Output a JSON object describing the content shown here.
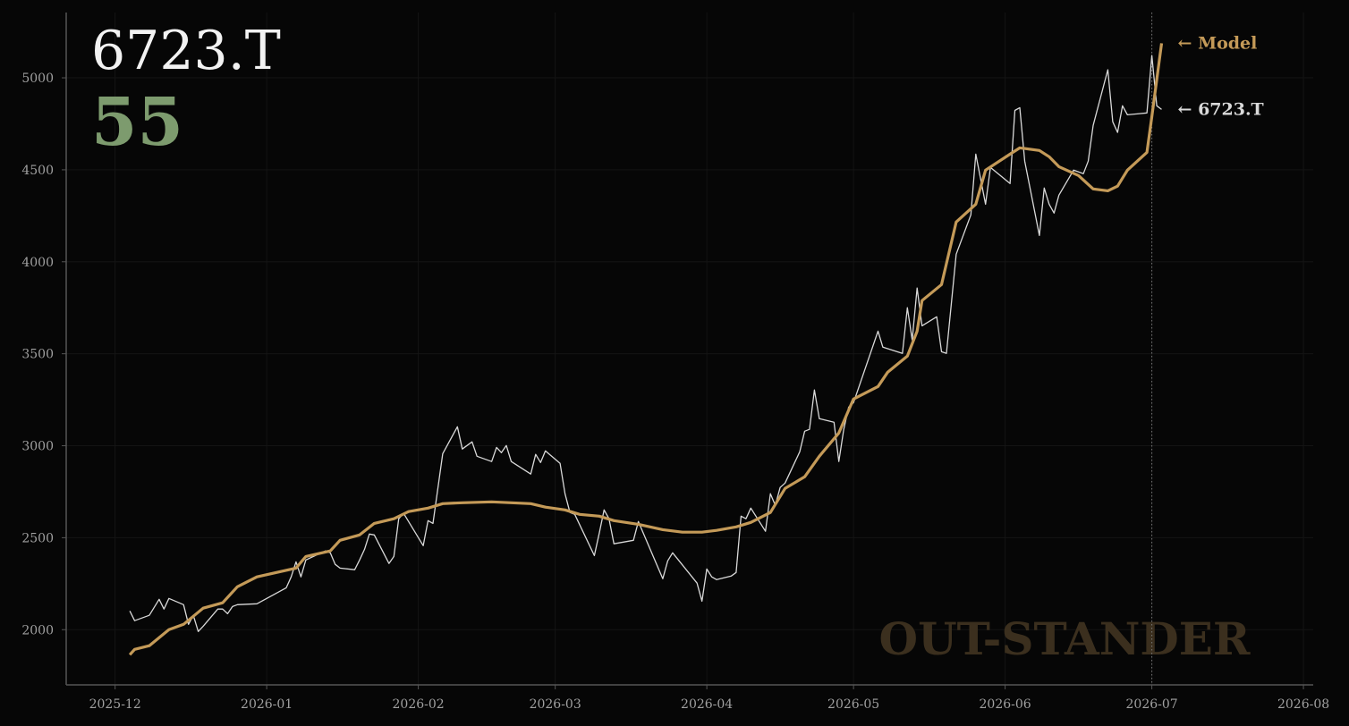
{
  "chart_data": {
    "type": "line",
    "title": "6723.T",
    "score": 55,
    "watermark": "OUT-STANDER",
    "xlim": [
      "2025-11-21",
      "2026-08-03"
    ],
    "xticks": [
      {
        "value": "2025-12-01",
        "label": "2025-12"
      },
      {
        "value": "2026-01-01",
        "label": "2026-01"
      },
      {
        "value": "2026-02-01",
        "label": "2026-02"
      },
      {
        "value": "2026-03-01",
        "label": "2026-03"
      },
      {
        "value": "2026-04-01",
        "label": "2026-04"
      },
      {
        "value": "2026-05-01",
        "label": "2026-05"
      },
      {
        "value": "2026-06-01",
        "label": "2026-06"
      },
      {
        "value": "2026-07-01",
        "label": "2026-07"
      },
      {
        "value": "2026-08-01",
        "label": "2026-08"
      }
    ],
    "ylim": [
      1700,
      5355
    ],
    "yticks": [
      2000,
      2500,
      3000,
      3500,
      4000,
      4500,
      5000
    ],
    "grid": true,
    "marker_date": "2026-07-01",
    "series": [
      {
        "label": "← 6723.T",
        "color": "#d9d9d9",
        "x": [
          "2025-12-04",
          "2025-12-05",
          "2025-12-08",
          "2025-12-10",
          "2025-12-11",
          "2025-12-12",
          "2025-12-15",
          "2025-12-16",
          "2025-12-17",
          "2025-12-18",
          "2025-12-19",
          "2025-12-22",
          "2025-12-23",
          "2025-12-24",
          "2025-12-25",
          "2025-12-26",
          "2025-12-30",
          "2026-01-05",
          "2026-01-06",
          "2026-01-07",
          "2026-01-08",
          "2026-01-09",
          "2026-01-13",
          "2026-01-14",
          "2026-01-15",
          "2026-01-16",
          "2026-01-19",
          "2026-01-20",
          "2026-01-21",
          "2026-01-22",
          "2026-01-23",
          "2026-01-26",
          "2026-01-27",
          "2026-01-28",
          "2026-01-29",
          "2026-02-02",
          "2026-02-03",
          "2026-02-04",
          "2026-02-06",
          "2026-02-09",
          "2026-02-10",
          "2026-02-12",
          "2026-02-13",
          "2026-02-16",
          "2026-02-17",
          "2026-02-18",
          "2026-02-19",
          "2026-02-20",
          "2026-02-24",
          "2026-02-25",
          "2026-02-26",
          "2026-02-27",
          "2026-03-02",
          "2026-03-03",
          "2026-03-04",
          "2026-03-05",
          "2026-03-09",
          "2026-03-10",
          "2026-03-11",
          "2026-03-12",
          "2026-03-13",
          "2026-03-17",
          "2026-03-18",
          "2026-03-19",
          "2026-03-23",
          "2026-03-24",
          "2026-03-25",
          "2026-03-30",
          "2026-03-31",
          "2026-04-01",
          "2026-04-02",
          "2026-04-03",
          "2026-04-06",
          "2026-04-07",
          "2026-04-08",
          "2026-04-09",
          "2026-04-10",
          "2026-04-13",
          "2026-04-14",
          "2026-04-15",
          "2026-04-16",
          "2026-04-17",
          "2026-04-20",
          "2026-04-21",
          "2026-04-22",
          "2026-04-23",
          "2026-04-24",
          "2026-04-27",
          "2026-04-28",
          "2026-04-29",
          "2026-04-30",
          "2026-05-01",
          "2026-05-06",
          "2026-05-07",
          "2026-05-11",
          "2026-05-12",
          "2026-05-13",
          "2026-05-14",
          "2026-05-15",
          "2026-05-18",
          "2026-05-19",
          "2026-05-20",
          "2026-05-22",
          "2026-05-25",
          "2026-05-26",
          "2026-05-28",
          "2026-05-29",
          "2026-06-02",
          "2026-06-03",
          "2026-06-04",
          "2026-06-05",
          "2026-06-08",
          "2026-06-09",
          "2026-06-10",
          "2026-06-11",
          "2026-06-12",
          "2026-06-15",
          "2026-06-17",
          "2026-06-18",
          "2026-06-19",
          "2026-06-22",
          "2026-06-23",
          "2026-06-24",
          "2026-06-25",
          "2026-06-26",
          "2026-06-30",
          "2026-07-01",
          "2026-07-02",
          "2026-07-03"
        ],
        "values": [
          2102,
          2049,
          2078,
          2165,
          2112,
          2170,
          2136,
          2029,
          2078,
          1990,
          2019,
          2112,
          2112,
          2087,
          2126,
          2136,
          2141,
          2228,
          2287,
          2369,
          2287,
          2379,
          2428,
          2418,
          2355,
          2335,
          2326,
          2379,
          2437,
          2520,
          2515,
          2360,
          2398,
          2603,
          2632,
          2457,
          2593,
          2578,
          2957,
          3103,
          2982,
          3021,
          2943,
          2914,
          2991,
          2962,
          3001,
          2914,
          2846,
          2953,
          2909,
          2972,
          2904,
          2739,
          2637,
          2627,
          2403,
          2525,
          2651,
          2603,
          2467,
          2486,
          2588,
          2525,
          2277,
          2374,
          2418,
          2253,
          2155,
          2330,
          2287,
          2272,
          2292,
          2311,
          2617,
          2603,
          2661,
          2535,
          2739,
          2676,
          2773,
          2797,
          2967,
          3079,
          3089,
          3303,
          3147,
          3128,
          2914,
          3089,
          3210,
          3234,
          3623,
          3536,
          3502,
          3750,
          3575,
          3857,
          3652,
          3701,
          3511,
          3502,
          4041,
          4255,
          4585,
          4313,
          4513,
          4425,
          4823,
          4838,
          4547,
          4143,
          4401,
          4313,
          4265,
          4362,
          4498,
          4479,
          4547,
          4741,
          5044,
          4761,
          4703,
          4848,
          4799,
          4809,
          5121,
          4848,
          4828
        ]
      },
      {
        "label": "← Model",
        "color": "#c49a58",
        "x": [
          "2025-12-04",
          "2025-12-05",
          "2025-12-08",
          "2025-12-12",
          "2025-12-15",
          "2025-12-19",
          "2025-12-23",
          "2025-12-26",
          "2025-12-30",
          "2026-01-07",
          "2026-01-09",
          "2026-01-14",
          "2026-01-16",
          "2026-01-20",
          "2026-01-23",
          "2026-01-27",
          "2026-01-30",
          "2026-02-03",
          "2026-02-06",
          "2026-02-10",
          "2026-02-16",
          "2026-02-20",
          "2026-02-24",
          "2026-02-27",
          "2026-03-03",
          "2026-03-06",
          "2026-03-10",
          "2026-03-13",
          "2026-03-18",
          "2026-03-23",
          "2026-03-27",
          "2026-03-31",
          "2026-04-03",
          "2026-04-07",
          "2026-04-10",
          "2026-04-14",
          "2026-04-17",
          "2026-04-21",
          "2026-04-24",
          "2026-04-28",
          "2026-05-01",
          "2026-05-06",
          "2026-05-08",
          "2026-05-12",
          "2026-05-14",
          "2026-05-15",
          "2026-05-19",
          "2026-05-22",
          "2026-05-26",
          "2026-05-28",
          "2026-06-02",
          "2026-06-04",
          "2026-06-08",
          "2026-06-10",
          "2026-06-12",
          "2026-06-16",
          "2026-06-19",
          "2026-06-22",
          "2026-06-24",
          "2026-06-26",
          "2026-06-30",
          "2026-07-01",
          "2026-07-03"
        ],
        "values": [
          1864,
          1893,
          1913,
          2000,
          2029,
          2117,
          2146,
          2233,
          2287,
          2335,
          2398,
          2428,
          2486,
          2515,
          2578,
          2603,
          2642,
          2661,
          2685,
          2690,
          2695,
          2690,
          2685,
          2666,
          2651,
          2627,
          2617,
          2593,
          2573,
          2544,
          2530,
          2530,
          2540,
          2559,
          2583,
          2637,
          2768,
          2831,
          2943,
          3069,
          3254,
          3322,
          3400,
          3487,
          3623,
          3789,
          3876,
          4216,
          4313,
          4498,
          4585,
          4619,
          4605,
          4571,
          4517,
          4469,
          4396,
          4386,
          4411,
          4498,
          4595,
          4789,
          5188
        ]
      }
    ]
  }
}
